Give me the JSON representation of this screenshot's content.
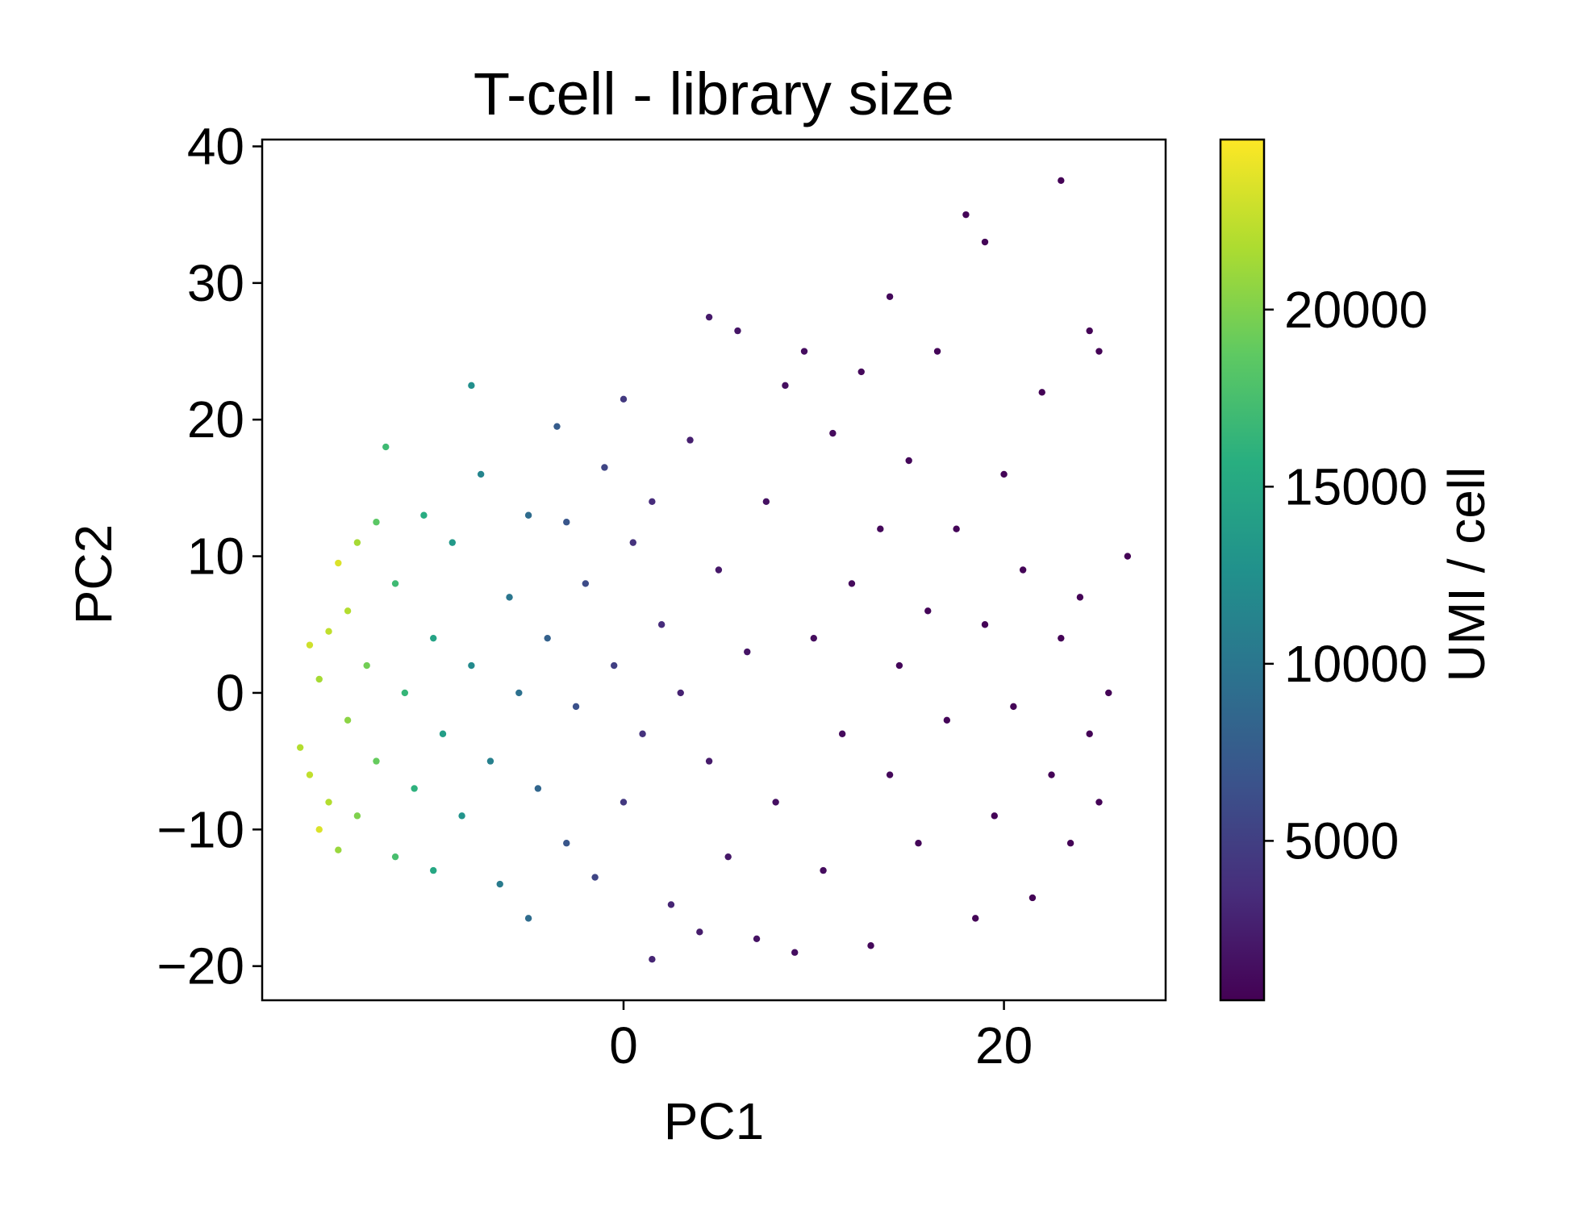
{
  "chart_data": {
    "type": "scatter",
    "title": "T-cell - library size",
    "xlabel": "PC1",
    "ylabel": "PC2",
    "xlim": [
      -19,
      28.5
    ],
    "ylim": [
      -22.5,
      40.5
    ],
    "xticks": [
      0,
      20
    ],
    "xtick_labels": [
      "0",
      "20"
    ],
    "yticks": [
      -20,
      -10,
      0,
      10,
      20,
      30,
      40
    ],
    "ytick_labels": [
      "−20",
      "−10",
      "0",
      "10",
      "20",
      "30",
      "40"
    ],
    "grid": false,
    "legend": "none",
    "colorbar": {
      "label": "UMI / cell",
      "colormap": "viridis",
      "vmin": 500,
      "vmax": 24800,
      "ticks": [
        5000,
        10000,
        15000,
        20000
      ],
      "tick_labels": [
        "5000",
        "10000",
        "15000",
        "20000"
      ]
    },
    "series": [
      {
        "color_by": "UMI / cell",
        "points": [
          [
            -17,
            -4,
            22000
          ],
          [
            -16.5,
            3.5,
            23000
          ],
          [
            -16.5,
            -6,
            22500
          ],
          [
            -16,
            -10,
            23500
          ],
          [
            -16,
            1,
            21500
          ],
          [
            -15.5,
            -8,
            22000
          ],
          [
            -15.5,
            4.5,
            22500
          ],
          [
            -15,
            9.5,
            23500
          ],
          [
            -15,
            -11.5,
            21000
          ],
          [
            -14.5,
            6,
            22000
          ],
          [
            -14.5,
            -2,
            20500
          ],
          [
            -14,
            11,
            21500
          ],
          [
            -14,
            -9,
            20000
          ],
          [
            -13.5,
            2,
            19500
          ],
          [
            -13,
            -5,
            19000
          ],
          [
            -13,
            12.5,
            18500
          ],
          [
            -12.5,
            18,
            17000
          ],
          [
            -12,
            -12,
            17500
          ],
          [
            -12,
            8,
            17000
          ],
          [
            -11.5,
            0,
            16500
          ],
          [
            -11,
            -7,
            16000
          ],
          [
            -10.5,
            13,
            15500
          ],
          [
            -10,
            -13,
            15000
          ],
          [
            -10,
            4,
            14500
          ],
          [
            -9.5,
            -3,
            14000
          ],
          [
            -9,
            11,
            13500
          ],
          [
            -8.5,
            -9,
            13000
          ],
          [
            -8,
            22.5,
            12500
          ],
          [
            -8,
            2,
            12000
          ],
          [
            -7.5,
            16,
            11500
          ],
          [
            -7,
            -5,
            11000
          ],
          [
            -6.5,
            -14,
            10500
          ],
          [
            -6,
            7,
            10000
          ],
          [
            -5.5,
            0,
            9500
          ],
          [
            -5,
            -16.5,
            9000
          ],
          [
            -5,
            13,
            9000
          ],
          [
            -4.5,
            -7,
            8500
          ],
          [
            -4,
            4,
            8000
          ],
          [
            -3.5,
            19.5,
            7500
          ],
          [
            -3,
            -11,
            7000
          ],
          [
            -3,
            12.5,
            7000
          ],
          [
            -2.5,
            -1,
            6500
          ],
          [
            -2,
            8,
            6000
          ],
          [
            -1.5,
            -13.5,
            5500
          ],
          [
            -1,
            16.5,
            5500
          ],
          [
            -0.5,
            2,
            5000
          ],
          [
            0,
            21.5,
            4500
          ],
          [
            0,
            -8,
            4500
          ],
          [
            0.5,
            11,
            4000
          ],
          [
            1,
            -3,
            4000
          ],
          [
            1.5,
            14,
            3500
          ],
          [
            1.5,
            -19.5,
            3000
          ],
          [
            2,
            5,
            3500
          ],
          [
            2.5,
            -15.5,
            3000
          ],
          [
            3,
            0,
            2800
          ],
          [
            3.5,
            18.5,
            2600
          ],
          [
            4,
            -17.5,
            2400
          ],
          [
            4.5,
            27.5,
            2200
          ],
          [
            4.5,
            -5,
            2300
          ],
          [
            5,
            9,
            2100
          ],
          [
            5.5,
            -12,
            2000
          ],
          [
            6,
            26.5,
            1900
          ],
          [
            6.5,
            3,
            1800
          ],
          [
            7,
            -18,
            1700
          ],
          [
            7.5,
            14,
            1600
          ],
          [
            8,
            -8,
            1500
          ],
          [
            8.5,
            22.5,
            1450
          ],
          [
            9,
            -19,
            1400
          ],
          [
            9.5,
            25,
            1350
          ],
          [
            10,
            4,
            1300
          ],
          [
            10.5,
            -13,
            1250
          ],
          [
            11,
            19,
            1200
          ],
          [
            11.5,
            -3,
            1150
          ],
          [
            12,
            8,
            1100
          ],
          [
            12.5,
            23.5,
            1050
          ],
          [
            13,
            -18.5,
            1000
          ],
          [
            13.5,
            12,
            1000
          ],
          [
            14,
            29,
            950
          ],
          [
            14,
            -6,
            950
          ],
          [
            14.5,
            2,
            900
          ],
          [
            15,
            17,
            900
          ],
          [
            15.5,
            -11,
            850
          ],
          [
            16,
            6,
            850
          ],
          [
            16.5,
            25,
            800
          ],
          [
            17,
            -2,
            800
          ],
          [
            17.5,
            12,
            780
          ],
          [
            18,
            35,
            760
          ],
          [
            18.5,
            -16.5,
            760
          ],
          [
            19,
            33,
            740
          ],
          [
            19,
            5,
            740
          ],
          [
            19.5,
            -9,
            720
          ],
          [
            20,
            16,
            720
          ],
          [
            20.5,
            -1,
            700
          ],
          [
            21,
            9,
            700
          ],
          [
            21.5,
            -15,
            690
          ],
          [
            22,
            22,
            680
          ],
          [
            22.5,
            -6,
            670
          ],
          [
            23,
            37.5,
            660
          ],
          [
            23,
            4,
            660
          ],
          [
            23.5,
            -11,
            650
          ],
          [
            24,
            7,
            650
          ],
          [
            24.5,
            26.5,
            640
          ],
          [
            24.5,
            -3,
            640
          ],
          [
            25,
            25,
            630
          ],
          [
            25,
            -8,
            630
          ],
          [
            25.5,
            0,
            620
          ],
          [
            26.5,
            10,
            610
          ]
        ]
      }
    ]
  }
}
